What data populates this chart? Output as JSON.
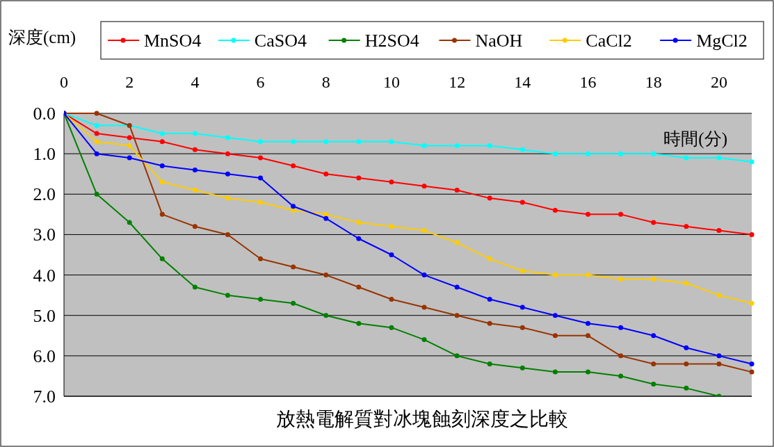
{
  "chart_data": {
    "type": "line",
    "title": "放熱電解質對冰塊蝕刻深度之比較",
    "xlabel": "時間(分)",
    "ylabel": "深度(cm)",
    "x": [
      0,
      1,
      2,
      3,
      4,
      5,
      6,
      7,
      8,
      9,
      10,
      11,
      12,
      13,
      14,
      15,
      16,
      17,
      18,
      19,
      20,
      21
    ],
    "xlim": [
      0,
      21
    ],
    "xticks": [
      0,
      2,
      4,
      6,
      8,
      10,
      12,
      14,
      16,
      18,
      20
    ],
    "ylim": [
      7,
      0
    ],
    "yticks": [
      {
        "value": 0,
        "label": "0.0"
      },
      {
        "value": 1,
        "label": "1.0"
      },
      {
        "value": 2,
        "label": "2.0"
      },
      {
        "value": 3,
        "label": "3.0"
      },
      {
        "value": 4,
        "label": "4.0"
      },
      {
        "value": 5,
        "label": "5.0"
      },
      {
        "value": 6,
        "label": "6.0"
      },
      {
        "value": 7,
        "label": "7.0"
      }
    ],
    "grid": "y",
    "legend": "top",
    "marker": "circle",
    "line_style": "solid",
    "series": [
      {
        "name": "MnSO4",
        "color": "#ff0000",
        "values": [
          0,
          0.5,
          0.6,
          0.7,
          0.9,
          1.0,
          1.1,
          1.3,
          1.5,
          1.6,
          1.7,
          1.8,
          1.9,
          2.1,
          2.2,
          2.4,
          2.5,
          2.5,
          2.7,
          2.8,
          2.9,
          3.0
        ]
      },
      {
        "name": "CaSO4",
        "color": "#00ffff",
        "values": [
          0,
          0.3,
          0.3,
          0.5,
          0.5,
          0.6,
          0.7,
          0.7,
          0.7,
          0.7,
          0.7,
          0.8,
          0.8,
          0.8,
          0.9,
          1.0,
          1.0,
          1.0,
          1.0,
          1.1,
          1.1,
          1.2
        ]
      },
      {
        "name": "H2SO4",
        "color": "#008000",
        "values": [
          0,
          2.0,
          2.7,
          3.6,
          4.3,
          4.5,
          4.6,
          4.7,
          5.0,
          5.2,
          5.3,
          5.6,
          6.0,
          6.2,
          6.3,
          6.4,
          6.4,
          6.5,
          6.7,
          6.8,
          7.0,
          null
        ]
      },
      {
        "name": "NaOH",
        "color": "#993300",
        "values": [
          0,
          0,
          0.3,
          2.5,
          2.8,
          3.0,
          3.6,
          3.8,
          4.0,
          4.3,
          4.6,
          4.8,
          5.0,
          5.2,
          5.3,
          5.5,
          5.5,
          6.0,
          6.2,
          6.2,
          6.2,
          6.4
        ]
      },
      {
        "name": "CaCl2",
        "color": "#ffcc00",
        "values": [
          0,
          0.7,
          0.8,
          1.7,
          1.9,
          2.1,
          2.2,
          2.4,
          2.5,
          2.7,
          2.8,
          2.9,
          3.2,
          3.6,
          3.9,
          4.0,
          4.0,
          4.1,
          4.1,
          4.2,
          4.5,
          4.7
        ]
      },
      {
        "name": "MgCl2",
        "color": "#0000ff",
        "values": [
          0,
          1.0,
          1.1,
          1.3,
          1.4,
          1.5,
          1.6,
          2.3,
          2.6,
          3.1,
          3.5,
          4.0,
          4.3,
          4.6,
          4.8,
          5.0,
          5.2,
          5.3,
          5.5,
          5.8,
          6.0,
          6.2
        ]
      }
    ]
  }
}
